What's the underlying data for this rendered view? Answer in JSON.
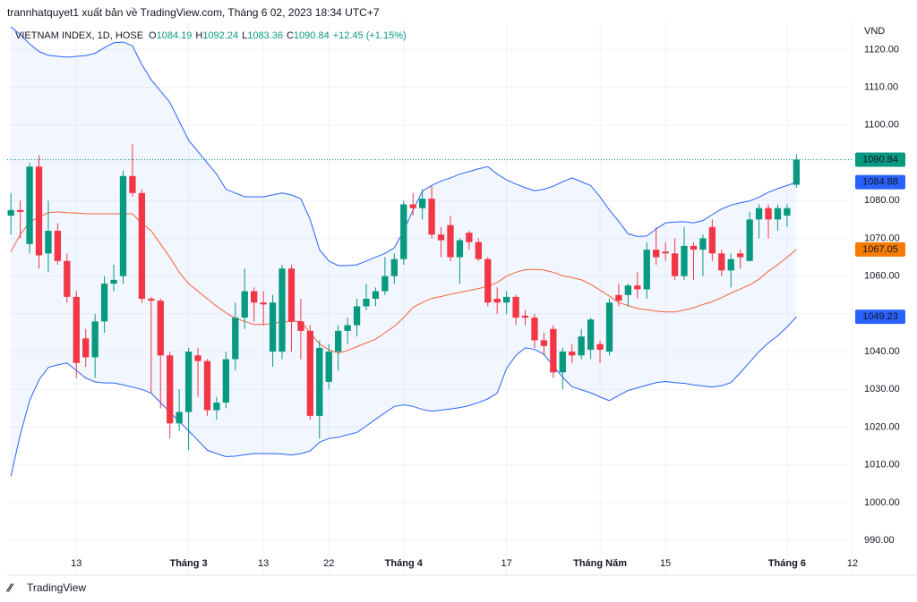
{
  "header": {
    "attribution": "trannhatquyet1 xuất bản về TradingView.com, Tháng 6 02, 2023 18:34 UTC+7",
    "symbol": "VIETNAM INDEX, 1D, HOSE",
    "ohlc": [
      {
        "label": "O",
        "value": "1084.19"
      },
      {
        "label": "H",
        "value": "1092.24"
      },
      {
        "label": "L",
        "value": "1083.36"
      },
      {
        "label": "C",
        "value": "1090.84"
      }
    ],
    "change": "+12.45 (+1.15%)",
    "currency": "VND"
  },
  "footer": {
    "brand": "TradingView"
  },
  "chart_data": {
    "type": "candlestick",
    "up_color": "#089981",
    "down_color": "#f23645",
    "grid": true,
    "open": [
      1076,
      1077.5,
      1068.5,
      1089,
      1066,
      1072,
      1064,
      1054.5,
      1043.5,
      1038.5,
      1048,
      1058,
      1060,
      1086.5,
      1082,
      1054,
      1053.5,
      1039,
      1021,
      1024,
      1039,
      1037.5,
      1024.5,
      1026.5,
      1038,
      1049,
      1056,
      1053,
      1040,
      1040,
      1062,
      1048,
      1045.5,
      1023,
      1032,
      1040,
      1045.5,
      1047,
      1052,
      1054,
      1056,
      1060,
      1064.5,
      1079,
      1078,
      1080.5,
      1071,
      1073.5,
      1065,
      1071.5,
      1069,
      1064.5,
      1054,
      1053,
      1054.5,
      1049.5,
      1049,
      1043,
      1046,
      1034.5,
      1040,
      1039,
      1040.5,
      1042,
      1040,
      1055,
      1055,
      1057.5,
      1056.5,
      1067,
      1066.5,
      1066,
      1060,
      1068,
      1067,
      1073,
      1066,
      1061.5,
      1066,
      1064,
      1075,
      1078,
      1075,
      1076,
      1084.19
    ],
    "high": [
      1082,
      1080,
      1090,
      1092,
      1080,
      1074,
      1066,
      1056,
      1046,
      1050,
      1060,
      1063,
      1088,
      1095,
      1083,
      1054.5,
      1054,
      1040,
      1030,
      1041,
      1041,
      1038,
      1028,
      1040,
      1053,
      1062,
      1057,
      1056,
      1055,
      1063,
      1063,
      1054,
      1047,
      1043,
      1042,
      1047,
      1049,
      1054,
      1058,
      1057,
      1065,
      1066,
      1080,
      1082,
      1083,
      1084,
      1073,
      1076,
      1070,
      1072,
      1070,
      1065,
      1057,
      1056,
      1055,
      1051,
      1050,
      1045,
      1047,
      1041,
      1042,
      1046,
      1049,
      1043,
      1054,
      1058,
      1058,
      1061,
      1069,
      1073,
      1069,
      1070,
      1073,
      1069,
      1071,
      1075,
      1067,
      1066,
      1067,
      1077,
      1079,
      1079,
      1079,
      1079,
      1092.24
    ],
    "low": [
      1071,
      1070,
      1066,
      1062,
      1061,
      1063,
      1053,
      1033,
      1036,
      1033,
      1045,
      1056,
      1058,
      1081,
      1053,
      1029,
      1025,
      1017,
      1019,
      1014,
      1028,
      1023,
      1022,
      1025,
      1035,
      1046,
      1048,
      1047,
      1036,
      1038,
      1040,
      1038,
      1022,
      1017,
      1030,
      1035,
      1042,
      1044,
      1051,
      1052,
      1055,
      1058,
      1063,
      1076,
      1075,
      1070,
      1065,
      1064,
      1058,
      1067,
      1064,
      1052,
      1050,
      1050,
      1047,
      1047,
      1041,
      1039,
      1033,
      1030,
      1037,
      1038,
      1038,
      1037,
      1039,
      1052,
      1052,
      1054,
      1054,
      1063,
      1064,
      1059,
      1059,
      1059,
      1060,
      1064,
      1060,
      1057,
      1062,
      1064,
      1070,
      1070,
      1072,
      1073,
      1083.36
    ],
    "close": [
      1077.5,
      1077,
      1089,
      1065.5,
      1072,
      1064,
      1054.5,
      1037,
      1038.5,
      1048,
      1058,
      1059,
      1086.5,
      1082,
      1054,
      1053.5,
      1039,
      1021,
      1024,
      1040,
      1037.5,
      1024.5,
      1026.5,
      1038,
      1049,
      1056,
      1053,
      1052.5,
      1053,
      1062,
      1048,
      1045.5,
      1023,
      1041,
      1040,
      1045.5,
      1047,
      1052,
      1054,
      1056,
      1060,
      1064.5,
      1079,
      1078,
      1080.5,
      1071,
      1069.5,
      1065,
      1069.5,
      1069,
      1064.5,
      1053,
      1053,
      1054.5,
      1049,
      1049,
      1043,
      1041.5,
      1034.5,
      1040,
      1039,
      1044,
      1048.5,
      1040.5,
      1053,
      1053.5,
      1057.5,
      1056.5,
      1067,
      1065,
      1066,
      1060,
      1068,
      1067,
      1070,
      1066,
      1061.5,
      1064.5,
      1065,
      1075,
      1078,
      1075,
      1078,
      1078,
      1090.84
    ],
    "upper_band": {
      "color": "#2962ff",
      "values": [
        1126,
        1124,
        1121.5,
        1119.5,
        1118.5,
        1118.2,
        1118,
        1118.2,
        1118.4,
        1119,
        1120.5,
        1121.8,
        1122,
        1121,
        1116,
        1112,
        1109,
        1106,
        1101,
        1096,
        1093,
        1090,
        1087,
        1083,
        1082,
        1081,
        1081,
        1081,
        1081.5,
        1082,
        1081.5,
        1080.5,
        1075,
        1067,
        1064,
        1062.8,
        1062.8,
        1063,
        1064,
        1065,
        1066,
        1067.5,
        1072,
        1077.5,
        1082.5,
        1084,
        1085.2,
        1086,
        1087,
        1087.7,
        1088.4,
        1089,
        1087,
        1085.5,
        1084.4,
        1083.4,
        1082.6,
        1083,
        1083.8,
        1085,
        1086,
        1085,
        1084,
        1081,
        1077.5,
        1074.5,
        1071.2,
        1070.5,
        1070.6,
        1072.5,
        1074.1,
        1074.3,
        1074.4,
        1074.1,
        1074.7,
        1076.3,
        1077.8,
        1078.8,
        1079.4,
        1079.9,
        1080.9,
        1082.2,
        1083.2,
        1084,
        1084.88
      ]
    },
    "middle_band": {
      "color": "#f7623a",
      "values": [
        1066.5,
        1071,
        1074.3,
        1075.7,
        1076.8,
        1077,
        1076.8,
        1076.7,
        1076.5,
        1076.5,
        1076.5,
        1076.5,
        1076.5,
        1076.5,
        1074,
        1072,
        1068.5,
        1065,
        1061,
        1058,
        1056,
        1054,
        1052,
        1050.3,
        1048.8,
        1048,
        1047.2,
        1047.2,
        1047.5,
        1047.8,
        1048,
        1048,
        1045,
        1042,
        1040.5,
        1039.6,
        1040.3,
        1041.3,
        1042.3,
        1043.3,
        1045,
        1046.7,
        1049,
        1051.7,
        1053,
        1054.1,
        1054.6,
        1055.2,
        1055.7,
        1056.2,
        1056.7,
        1057.3,
        1058.3,
        1060,
        1061,
        1061.7,
        1061.8,
        1061.6,
        1061,
        1060.1,
        1059.6,
        1059,
        1057.8,
        1056.3,
        1054.7,
        1053,
        1052.2,
        1051.4,
        1051.1,
        1050.7,
        1050.5,
        1050.5,
        1051,
        1051.6,
        1052.5,
        1053.2,
        1054.3,
        1055.5,
        1056.6,
        1057.7,
        1059.2,
        1061.3,
        1063,
        1065,
        1067.05
      ]
    },
    "lower_band": {
      "color": "#2962ff",
      "values": [
        1007,
        1018,
        1027,
        1032.5,
        1035.8,
        1036.5,
        1037,
        1035,
        1033,
        1032,
        1031.7,
        1031.7,
        1031.2,
        1030.6,
        1030,
        1029,
        1026.5,
        1024,
        1021.5,
        1019,
        1016.5,
        1013.9,
        1013,
        1012.2,
        1012.3,
        1012.7,
        1013,
        1013,
        1013,
        1012.9,
        1012.6,
        1013,
        1013.7,
        1016,
        1017,
        1017.3,
        1018,
        1018.6,
        1020.3,
        1022.1,
        1023.8,
        1025.5,
        1025.9,
        1025.5,
        1024.7,
        1024.2,
        1024.5,
        1024.8,
        1025.2,
        1025.7,
        1026.5,
        1027.5,
        1029,
        1035.5,
        1039,
        1041,
        1040.6,
        1039.3,
        1036.2,
        1033.2,
        1030.7,
        1029.9,
        1029.1,
        1028,
        1027,
        1028.4,
        1029.7,
        1030.4,
        1031.1,
        1031.8,
        1032.1,
        1031.8,
        1031.6,
        1031.2,
        1030.9,
        1030.6,
        1031,
        1031.8,
        1034.4,
        1037.2,
        1040,
        1042.3,
        1044.2,
        1046.5,
        1049.23
      ]
    },
    "band_fill": "rgba(41,98,255,0.06)",
    "price_labels": [
      {
        "value": 1090.84,
        "color": "#089981"
      },
      {
        "value": 1084.88,
        "color": "#2962ff"
      },
      {
        "value": 1067.05,
        "color": "#f57c00"
      },
      {
        "value": 1049.23,
        "color": "#2962ff"
      }
    ],
    "xlim": [
      -0.4,
      90
    ],
    "xticks": [
      {
        "value": 7,
        "label": "13"
      },
      {
        "value": 19,
        "label": "Tháng 3"
      },
      {
        "value": 27,
        "label": "13"
      },
      {
        "value": 34,
        "label": "22"
      },
      {
        "value": 42,
        "label": "Tháng 4"
      },
      {
        "value": 53,
        "label": "17"
      },
      {
        "value": 63,
        "label": "Tháng Năm"
      },
      {
        "value": 70,
        "label": "15"
      },
      {
        "value": 83,
        "label": "Tháng 6"
      },
      {
        "value": 90,
        "label": "12"
      }
    ],
    "ylim": [
      980.8,
      1127.2
    ],
    "yticks": [
      {
        "value": 990,
        "label": "990.00"
      },
      {
        "value": 1000,
        "label": "1000.00"
      },
      {
        "value": 1010,
        "label": "1010.00"
      },
      {
        "value": 1020,
        "label": "1020.00"
      },
      {
        "value": 1030,
        "label": "1030.00"
      },
      {
        "value": 1040,
        "label": "1040.00"
      },
      {
        "value": 1050,
        "label": "1050.00"
      },
      {
        "value": 1060,
        "label": "1060.00"
      },
      {
        "value": 1070,
        "label": "1070.00"
      },
      {
        "value": 1080,
        "label": "1080.00"
      },
      {
        "value": 1090,
        "label": "1090.00"
      },
      {
        "value": 1100,
        "label": "1100.00"
      },
      {
        "value": 1110,
        "label": "1110.00"
      },
      {
        "value": 1120,
        "label": "1120.00"
      }
    ]
  }
}
